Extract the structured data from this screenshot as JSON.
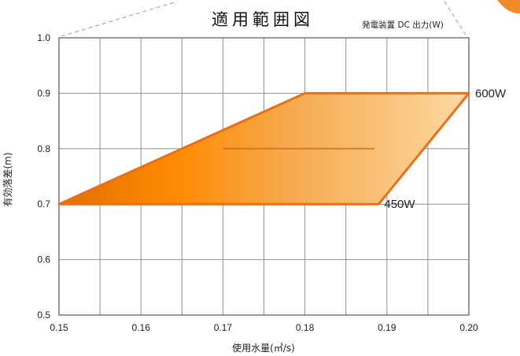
{
  "chart_data": {
    "type": "area",
    "title": "適用範囲図",
    "subtitle": "発電装置 DC 出力(W)",
    "xlabel": "使用水量(㎥/s)",
    "ylabel": "有効落差(m)",
    "xlim": [
      0.15,
      0.2
    ],
    "ylim": [
      0.5,
      1.0
    ],
    "grid": true,
    "x_ticks": [
      "0.15",
      "0.16",
      "0.17",
      "0.18",
      "0.19",
      "0.20"
    ],
    "y_ticks": [
      "0.5",
      "0.6",
      "0.7",
      "0.8",
      "0.9",
      "1.0"
    ],
    "region": [
      {
        "x": 0.15,
        "y": 0.7
      },
      {
        "x": 0.18,
        "y": 0.9
      },
      {
        "x": 0.2,
        "y": 0.9
      },
      {
        "x": 0.189,
        "y": 0.7
      }
    ],
    "series": [
      {
        "name": "600W",
        "x": [
          0.18,
          0.2
        ],
        "y": [
          0.9,
          0.9
        ]
      },
      {
        "name": "450W",
        "x": [
          0.15,
          0.189
        ],
        "y": [
          0.7,
          0.7
        ]
      }
    ],
    "colors": {
      "outline": "#e8701a",
      "fill_dark": "#ee7c00",
      "fill_light": "#fad39a",
      "grid": "#909090",
      "corner_accent": "#f28a2a"
    }
  }
}
